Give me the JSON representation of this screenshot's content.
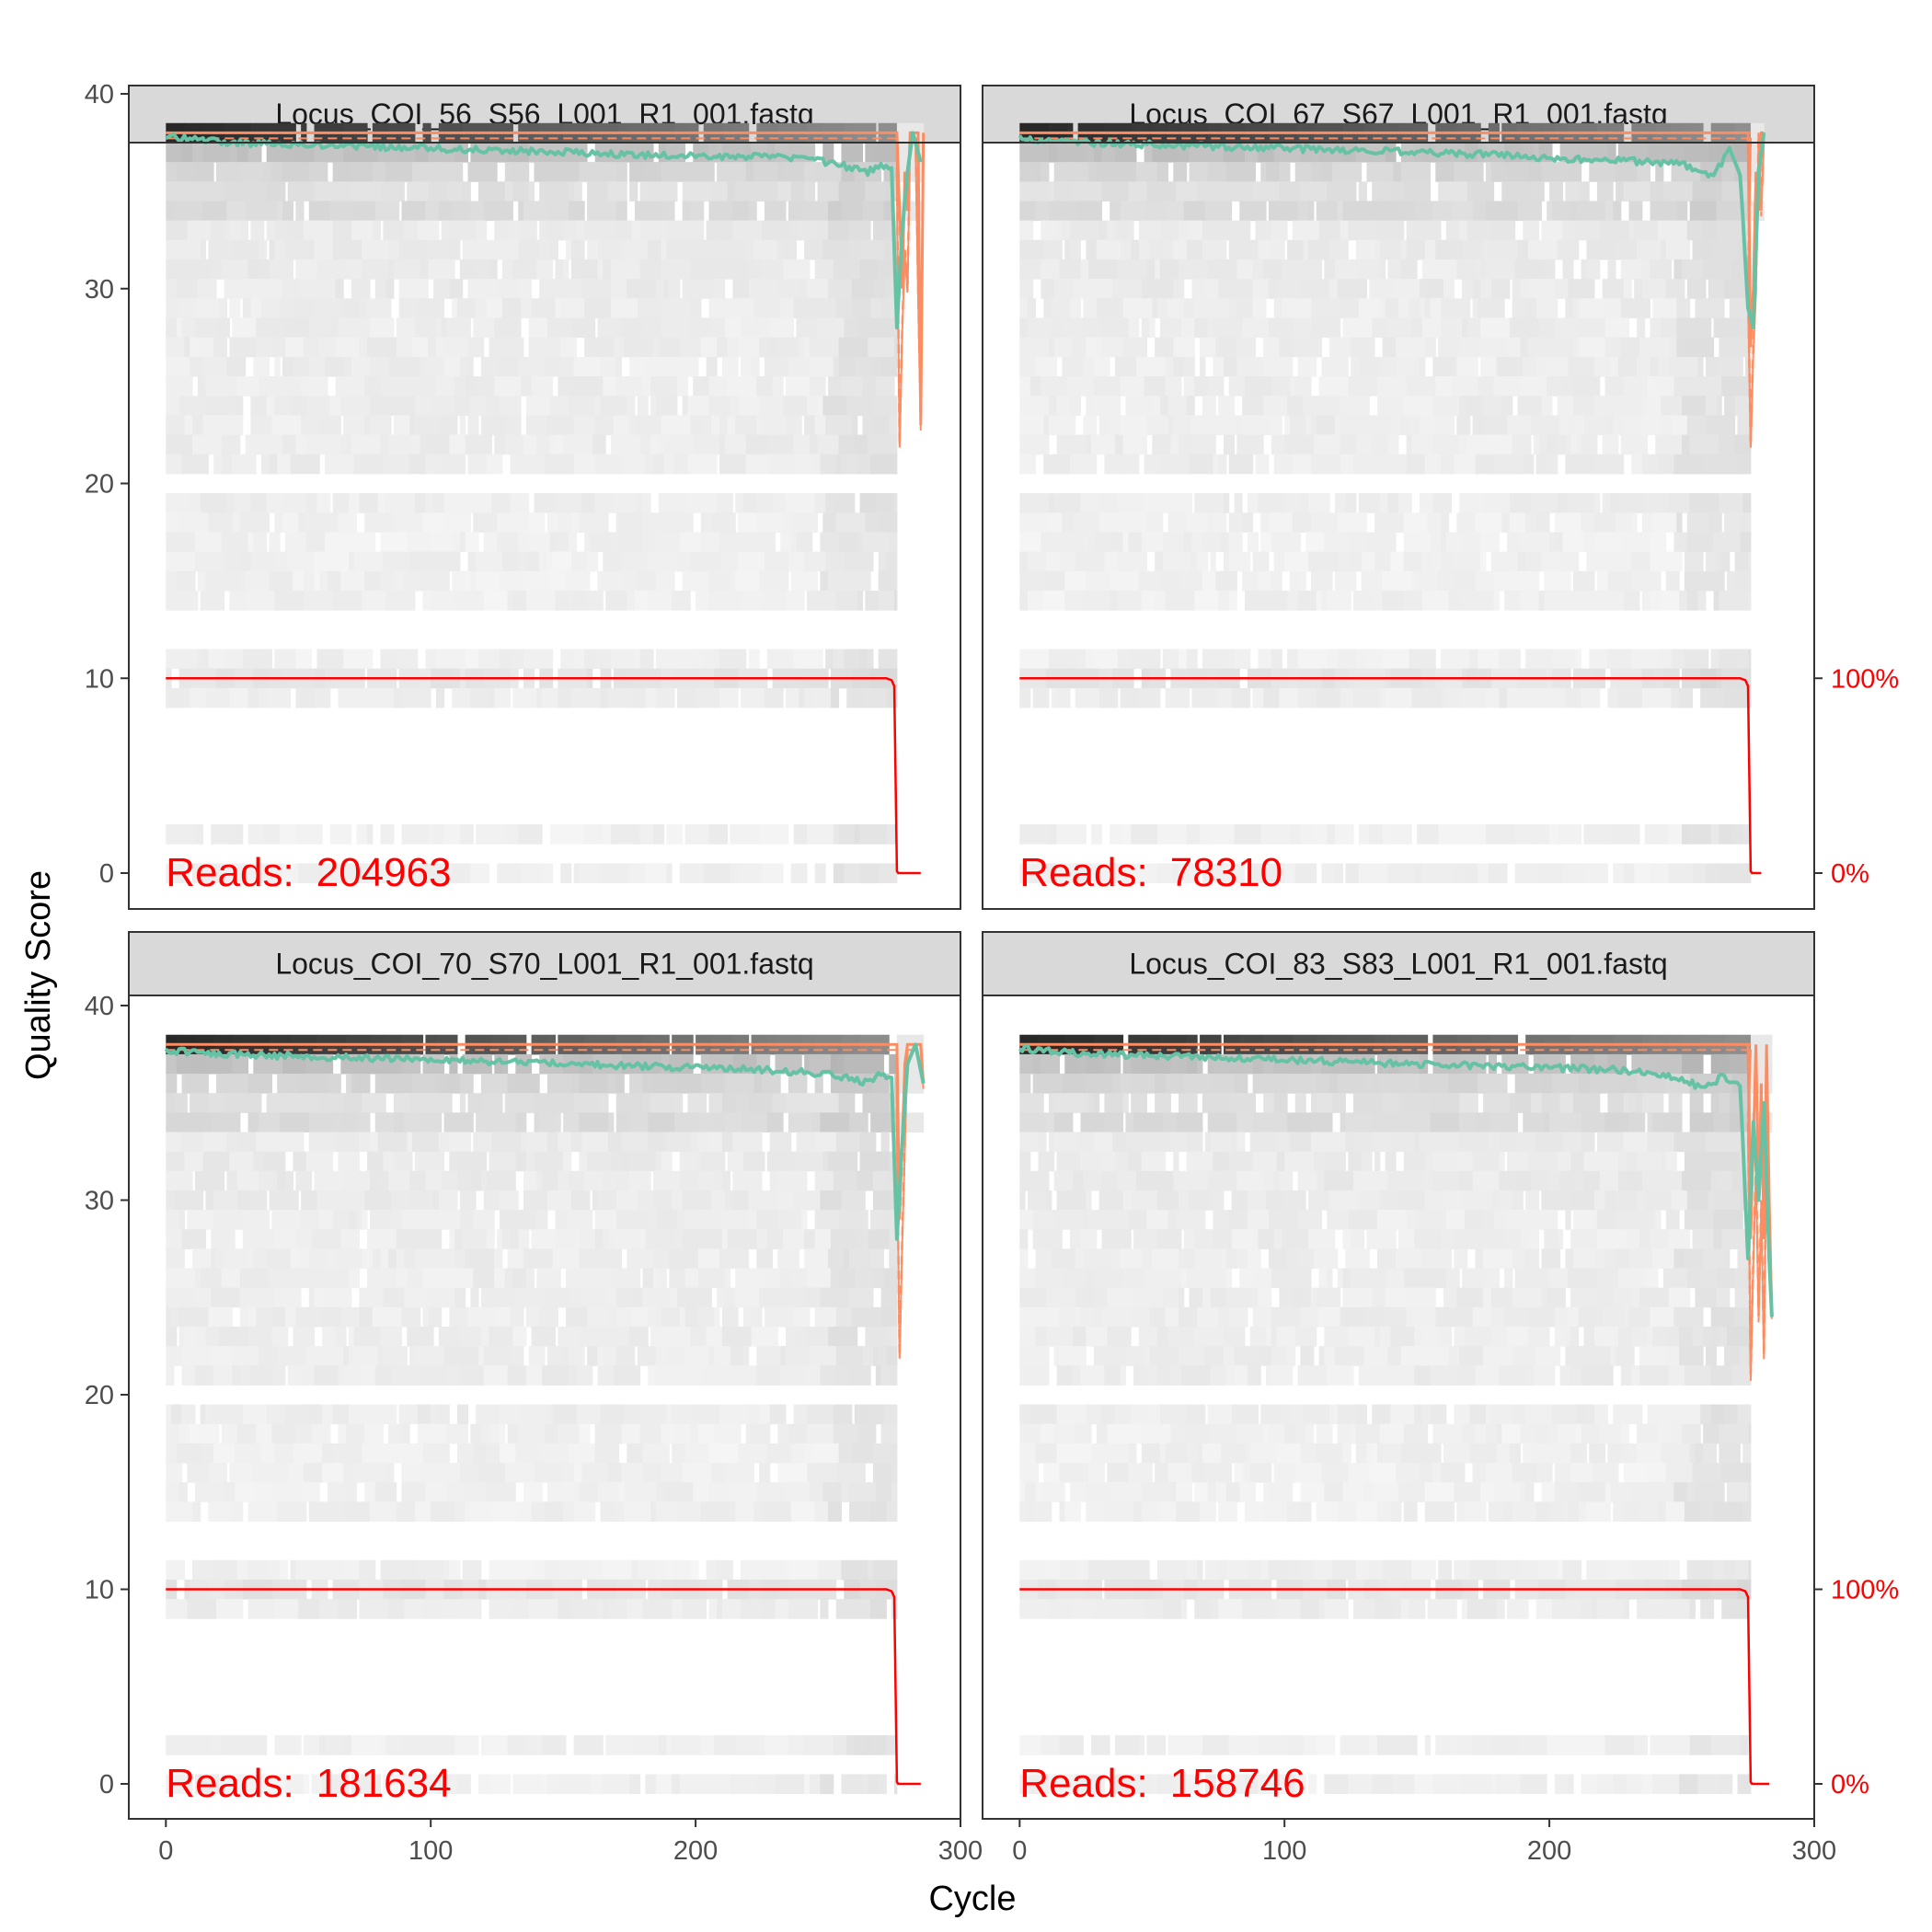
{
  "chart_data": {
    "type": "heatmap",
    "xlabel": "Cycle",
    "ylabel": "Quality Score",
    "xlim": [
      -14,
      300
    ],
    "ylim": [
      -2,
      40.5
    ],
    "x_ticks": [
      0,
      100,
      200,
      300
    ],
    "y_ticks": [
      0,
      10,
      20,
      30,
      40
    ],
    "right_axis_ticks": [
      {
        "quality": 10,
        "label": "100%"
      },
      {
        "quality": 0,
        "label": "0%"
      }
    ],
    "colors": {
      "mean_line": "#66c2a5",
      "quartile_lines": "#fc8d62",
      "read_fraction_line": "#ff0000",
      "strip_fill": "#d9d9d9",
      "panel_border": "#333333"
    },
    "panels": [
      {
        "title": "Locus_COI_56_S56_L001_R1_001.fastq",
        "reads_label": "Reads:",
        "reads_value": "204963",
        "read_length": 276,
        "tail_end": 286,
        "median_tail": [
          [
            276,
            38
          ],
          [
            278,
            30
          ],
          [
            279,
            36
          ],
          [
            280,
            34
          ],
          [
            281,
            38
          ],
          [
            284,
            38
          ],
          [
            285,
            23
          ],
          [
            286,
            38
          ]
        ],
        "q25_tail": [
          [
            276,
            36
          ],
          [
            277,
            22
          ],
          [
            278,
            28
          ],
          [
            279,
            32
          ],
          [
            280,
            30
          ],
          [
            281,
            38
          ],
          [
            283,
            38
          ],
          [
            284,
            30
          ],
          [
            285,
            23
          ],
          [
            286,
            38
          ]
        ],
        "mean_points": [
          [
            0,
            37.8
          ],
          [
            25,
            37.5
          ],
          [
            50,
            37.4
          ],
          [
            75,
            37.3
          ],
          [
            100,
            37.2
          ],
          [
            125,
            37.1
          ],
          [
            150,
            37.0
          ],
          [
            175,
            36.9
          ],
          [
            200,
            36.8
          ],
          [
            225,
            36.8
          ],
          [
            250,
            36.5
          ],
          [
            265,
            36.0
          ],
          [
            270,
            36.4
          ],
          [
            274,
            36.2
          ],
          [
            276,
            28.0
          ],
          [
            278,
            33.0
          ],
          [
            280,
            36.0
          ],
          [
            282,
            38.0
          ],
          [
            285,
            36.5
          ]
        ]
      },
      {
        "title": "Locus_COI_67_S67_L001_R1_001.fastq",
        "reads_label": "Reads:",
        "reads_value": "78310",
        "read_length": 276,
        "tail_end": 281,
        "median_tail": [
          [
            275,
            38
          ],
          [
            276,
            27
          ],
          [
            277,
            30
          ],
          [
            278,
            36
          ],
          [
            279,
            34
          ],
          [
            280,
            38
          ],
          [
            281,
            38
          ]
        ],
        "q25_tail": [
          [
            275,
            30
          ],
          [
            276,
            22
          ],
          [
            277,
            27
          ],
          [
            278,
            30
          ],
          [
            279,
            38
          ],
          [
            280,
            34
          ],
          [
            281,
            38
          ]
        ],
        "mean_points": [
          [
            0,
            37.7
          ],
          [
            25,
            37.5
          ],
          [
            50,
            37.4
          ],
          [
            75,
            37.3
          ],
          [
            100,
            37.2
          ],
          [
            125,
            37.1
          ],
          [
            150,
            37.0
          ],
          [
            175,
            36.9
          ],
          [
            200,
            36.7
          ],
          [
            225,
            36.6
          ],
          [
            250,
            36.4
          ],
          [
            262,
            35.8
          ],
          [
            268,
            37.1
          ],
          [
            272,
            36.0
          ],
          [
            275,
            29.0
          ],
          [
            277,
            28.0
          ],
          [
            279,
            36.0
          ],
          [
            281,
            38.0
          ]
        ]
      },
      {
        "title": "Locus_COI_70_S70_L001_R1_001.fastq",
        "reads_label": "Reads:",
        "reads_value": "181634",
        "read_length": 276,
        "tail_end": 286,
        "median_tail": [
          [
            276,
            38
          ],
          [
            277,
            29
          ],
          [
            278,
            33
          ],
          [
            279,
            37
          ],
          [
            280,
            38
          ],
          [
            285,
            38
          ],
          [
            286,
            36
          ]
        ],
        "q25_tail": [
          [
            276,
            34
          ],
          [
            277,
            22
          ],
          [
            278,
            28
          ],
          [
            279,
            33
          ],
          [
            280,
            38
          ],
          [
            285,
            38
          ],
          [
            286,
            36
          ]
        ],
        "mean_points": [
          [
            0,
            37.7
          ],
          [
            25,
            37.5
          ],
          [
            50,
            37.4
          ],
          [
            75,
            37.3
          ],
          [
            100,
            37.2
          ],
          [
            125,
            37.1
          ],
          [
            150,
            37.0
          ],
          [
            175,
            36.9
          ],
          [
            200,
            36.8
          ],
          [
            225,
            36.7
          ],
          [
            250,
            36.5
          ],
          [
            265,
            36.0
          ],
          [
            270,
            36.5
          ],
          [
            274,
            36.3
          ],
          [
            276,
            28.0
          ],
          [
            278,
            33.0
          ],
          [
            280,
            37.0
          ],
          [
            283,
            38.0
          ],
          [
            286,
            36.0
          ]
        ]
      },
      {
        "title": "Locus_COI_83_S83_L001_R1_001.fastq",
        "reads_label": "Reads:",
        "reads_value": "158746",
        "read_length": 276,
        "tail_end": 284,
        "median_tail": [
          [
            275,
            38
          ],
          [
            276,
            28
          ],
          [
            277,
            33
          ],
          [
            278,
            38
          ],
          [
            279,
            30
          ],
          [
            280,
            36
          ],
          [
            281,
            28
          ],
          [
            282,
            38
          ],
          [
            283,
            30
          ],
          [
            284,
            24
          ]
        ],
        "q25_tail": [
          [
            275,
            34
          ],
          [
            276,
            21
          ],
          [
            277,
            27
          ],
          [
            278,
            32
          ],
          [
            279,
            24
          ],
          [
            280,
            30
          ],
          [
            281,
            22
          ],
          [
            282,
            34
          ],
          [
            283,
            27
          ],
          [
            284,
            24
          ]
        ],
        "mean_points": [
          [
            0,
            37.8
          ],
          [
            25,
            37.5
          ],
          [
            50,
            37.4
          ],
          [
            75,
            37.3
          ],
          [
            100,
            37.2
          ],
          [
            125,
            37.1
          ],
          [
            150,
            37.0
          ],
          [
            175,
            36.9
          ],
          [
            200,
            36.8
          ],
          [
            225,
            36.7
          ],
          [
            250,
            36.3
          ],
          [
            258,
            35.7
          ],
          [
            265,
            36.3
          ],
          [
            272,
            36.0
          ],
          [
            275,
            27.0
          ],
          [
            277,
            34.0
          ],
          [
            279,
            30.0
          ],
          [
            281,
            35.0
          ],
          [
            283,
            27.0
          ],
          [
            284,
            24.0
          ]
        ]
      }
    ]
  }
}
